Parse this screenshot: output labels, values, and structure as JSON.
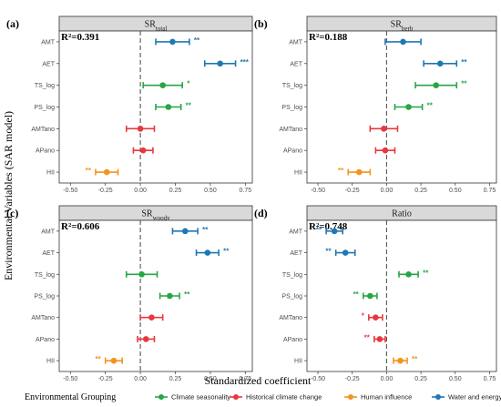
{
  "colors": {
    "Climate seasonality": "#27a645",
    "Historical climate change": "#e8383d",
    "Human influence": "#f5931e",
    "Water and energy": "#1f78b4"
  },
  "chart_data": [
    {
      "type": "scatter",
      "tag": "(a)",
      "title": "SR",
      "title_sub": "total",
      "r2_label": "R²=0.391",
      "categories": [
        "AMT",
        "AET",
        "TS_log",
        "PS_log",
        "AMTano",
        "APano",
        "HII"
      ],
      "estimate": [
        0.23,
        0.57,
        0.16,
        0.2,
        0.0,
        0.02,
        -0.24
      ],
      "ci_low": [
        0.11,
        0.46,
        0.02,
        0.11,
        -0.1,
        -0.05,
        -0.32
      ],
      "ci_high": [
        0.35,
        0.68,
        0.3,
        0.29,
        0.1,
        0.09,
        -0.16
      ],
      "group": [
        "Water and energy",
        "Water and energy",
        "Climate seasonality",
        "Climate seasonality",
        "Historical climate change",
        "Historical climate change",
        "Human influence"
      ],
      "sig": [
        "**",
        "***",
        "*",
        "**",
        "",
        "",
        "**"
      ],
      "xlim": [
        -0.58,
        0.8
      ]
    },
    {
      "type": "scatter",
      "tag": "(b)",
      "title": "SR",
      "title_sub": "herb",
      "r2_label": "R²=0.188",
      "categories": [
        "AMT",
        "AET",
        "TS_log",
        "PS_log",
        "AMTano",
        "APano",
        "HII"
      ],
      "estimate": [
        0.12,
        0.39,
        0.36,
        0.16,
        -0.02,
        -0.01,
        -0.2
      ],
      "ci_low": [
        -0.01,
        0.27,
        0.21,
        0.06,
        -0.12,
        -0.08,
        -0.28
      ],
      "ci_high": [
        0.25,
        0.51,
        0.51,
        0.26,
        0.08,
        0.06,
        -0.12
      ],
      "group": [
        "Water and energy",
        "Water and energy",
        "Climate seasonality",
        "Climate seasonality",
        "Historical climate change",
        "Historical climate change",
        "Human influence"
      ],
      "sig": [
        "",
        "**",
        "**",
        "**",
        "",
        "",
        "**"
      ],
      "xlim": [
        -0.58,
        0.8
      ]
    },
    {
      "type": "scatter",
      "tag": "(c)",
      "title": "SR",
      "title_sub": "woody",
      "r2_label": "R²=0.606",
      "categories": [
        "AMT",
        "AET",
        "TS_log",
        "PS_log",
        "AMTano",
        "APano",
        "HII"
      ],
      "estimate": [
        0.32,
        0.48,
        0.01,
        0.21,
        0.08,
        0.04,
        -0.19
      ],
      "ci_low": [
        0.23,
        0.4,
        -0.1,
        0.14,
        0.0,
        -0.02,
        -0.25
      ],
      "ci_high": [
        0.41,
        0.56,
        0.12,
        0.28,
        0.16,
        0.1,
        -0.13
      ],
      "group": [
        "Water and energy",
        "Water and energy",
        "Climate seasonality",
        "Climate seasonality",
        "Historical climate change",
        "Historical climate change",
        "Human influence"
      ],
      "sig": [
        "**",
        "**",
        "",
        "**",
        "",
        "",
        "**"
      ],
      "xlim": [
        -0.58,
        0.8
      ]
    },
    {
      "type": "scatter",
      "tag": "(d)",
      "title": "Ratio",
      "title_sub": "",
      "r2_label": "R²=0.748",
      "categories": [
        "AMT",
        "AET",
        "TS_log",
        "PS_log",
        "AMTano",
        "APano",
        "HII"
      ],
      "estimate": [
        -0.38,
        -0.3,
        0.16,
        -0.12,
        -0.08,
        -0.05,
        0.1
      ],
      "ci_low": [
        -0.44,
        -0.37,
        0.09,
        -0.17,
        -0.13,
        -0.09,
        0.05
      ],
      "ci_high": [
        -0.32,
        -0.23,
        0.23,
        -0.07,
        -0.03,
        -0.01,
        0.15
      ],
      "group": [
        "Water and energy",
        "Water and energy",
        "Climate seasonality",
        "Climate seasonality",
        "Historical climate change",
        "Historical climate change",
        "Human influence"
      ],
      "sig": [
        "**",
        "**",
        "**",
        "**",
        "*",
        "**",
        "**"
      ],
      "xlim": [
        -0.58,
        0.8
      ]
    }
  ],
  "x_ticks": [
    -0.5,
    -0.25,
    0,
    0.25,
    0.5,
    0.75
  ],
  "x_tick_labels": [
    "-0.50",
    "-0.25",
    "0.00",
    "0.25",
    "0.50",
    "0.75"
  ],
  "ylabel": "Environmental Variables (SAR model)",
  "xlabel": "Standardized coefficient",
  "legend": {
    "title": "Environmental Grouping",
    "items": [
      "Climate seasonality",
      "Historical climate change",
      "Human influence",
      "Water and energy"
    ]
  }
}
